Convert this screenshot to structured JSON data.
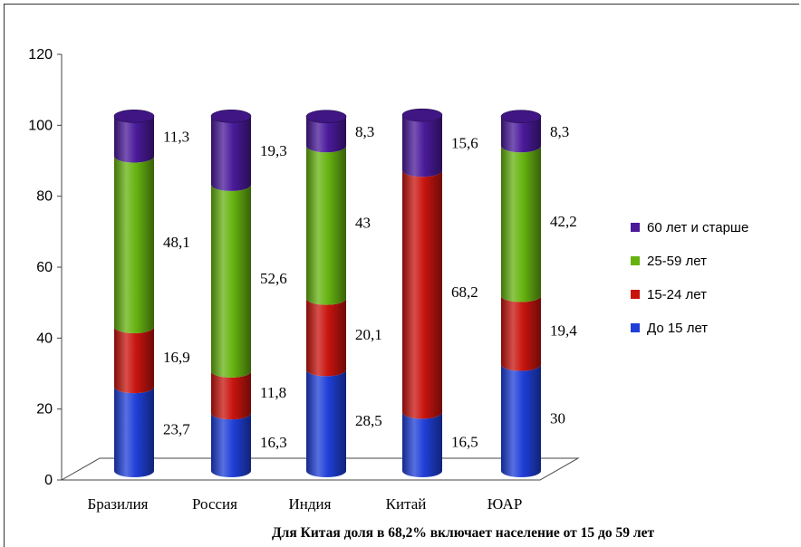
{
  "chart_data": {
    "type": "bar",
    "stacked": true,
    "style": "3d-cylinder",
    "categories": [
      "Бразилия",
      "Россия",
      "Индия",
      "Китай",
      "ЮАР"
    ],
    "series": [
      {
        "name": "До 15 лет",
        "color": "#1f3fd8",
        "values": [
          23.7,
          16.3,
          28.5,
          16.5,
          30
        ]
      },
      {
        "name": "15-24 лет",
        "color": "#c8140e",
        "values": [
          16.9,
          11.8,
          20.1,
          68.2,
          19.4
        ]
      },
      {
        "name": "25-59 лет",
        "color": "#66b310",
        "values": [
          48.1,
          52.6,
          43,
          null,
          42.2
        ]
      },
      {
        "name": "60 лет и старше",
        "color": "#4a1a9a",
        "values": [
          11.3,
          19.3,
          8.3,
          15.6,
          8.3
        ]
      }
    ],
    "data_labels": [
      [
        "23,7",
        "16,3",
        "28,5",
        "16,5",
        "30"
      ],
      [
        "16,9",
        "11,8",
        "20,1",
        "68,2",
        "19,4"
      ],
      [
        "48,1",
        "52,6",
        "43",
        "",
        "42,2"
      ],
      [
        "11,3",
        "19,3",
        "8,3",
        "15,6",
        "8,3"
      ]
    ],
    "yticks": [
      "0",
      "20",
      "40",
      "60",
      "80",
      "100",
      "120"
    ],
    "ylim": [
      0,
      120
    ],
    "legend_position": "right",
    "legend_order": [
      "60 лет и старше",
      "25-59 лет",
      "15-24 лет",
      "До 15 лет"
    ],
    "grid": false
  },
  "footnote": "Для Китая доля в 68,2% включает население от 15 до 59 лет"
}
